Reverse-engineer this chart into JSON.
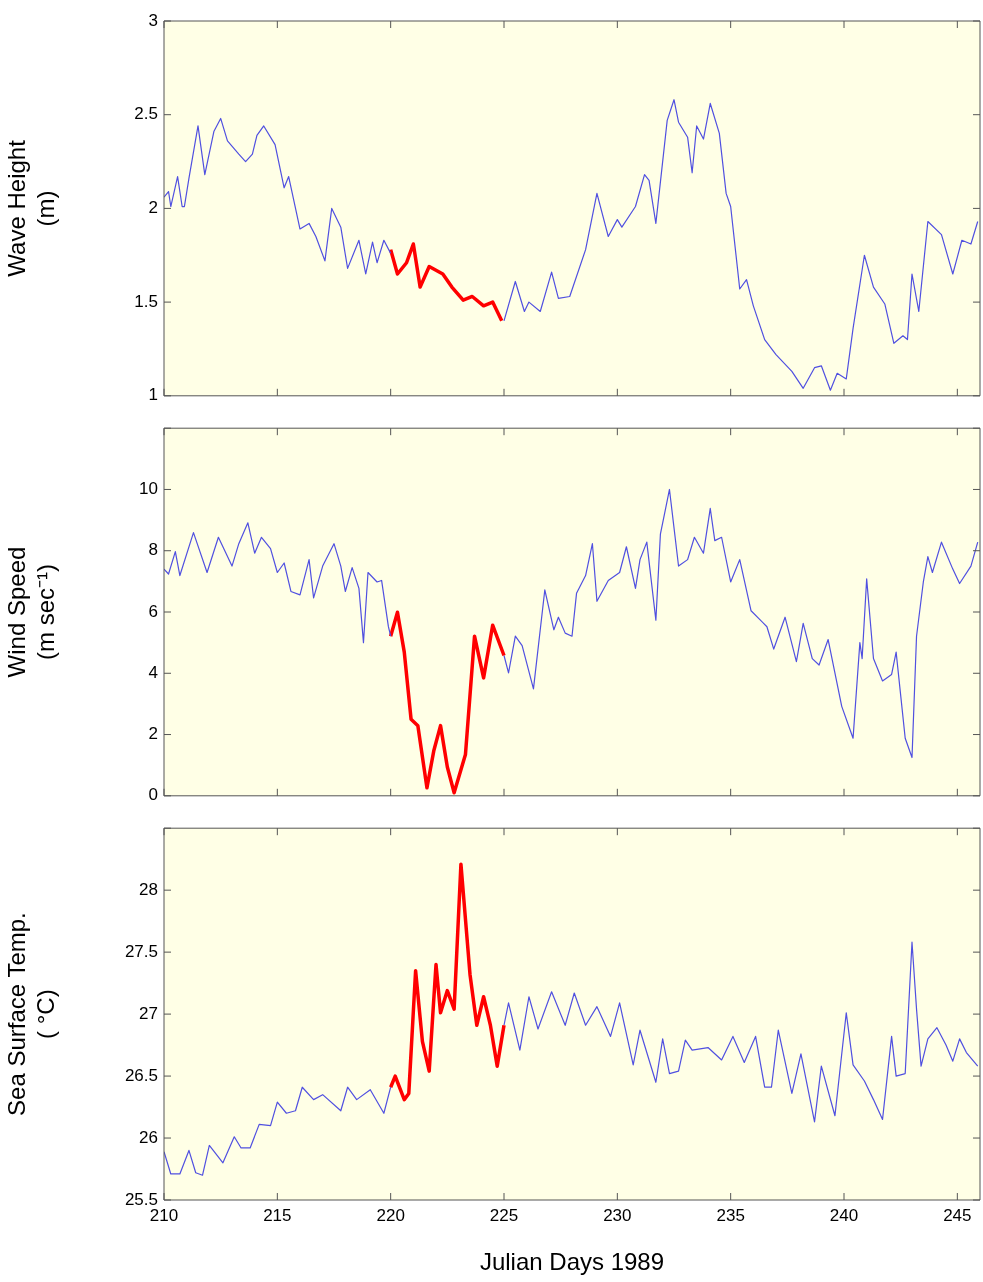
{
  "chart_data": [
    {
      "type": "line",
      "ylabel": "Wave Height\n(m)",
      "xlim": [
        210,
        246
      ],
      "xticks": [
        210,
        215,
        220,
        225,
        230,
        235,
        240,
        245
      ],
      "ylim": [
        1,
        3
      ],
      "yticks": [
        1,
        1.5,
        2,
        2.5,
        3
      ],
      "tick_labels": "y",
      "grid": false,
      "legend": false,
      "series": [
        {
          "color": "#5050e0",
          "x": [
            210.0,
            210.2,
            210.3,
            210.6,
            210.8,
            210.9,
            211.1,
            211.5,
            211.8,
            212.2,
            212.5,
            212.8,
            213.3,
            213.6,
            213.9,
            214.1,
            214.4,
            214.9,
            215.3,
            215.5,
            216.0,
            216.4,
            216.7,
            217.1,
            217.4,
            217.8,
            218.1,
            218.6,
            218.9,
            219.2,
            219.4,
            219.7,
            220.0
          ],
          "values": [
            2.06,
            2.09,
            2.01,
            2.17,
            2.01,
            2.01,
            2.16,
            2.44,
            2.18,
            2.41,
            2.48,
            2.36,
            2.29,
            2.25,
            2.29,
            2.39,
            2.44,
            2.34,
            2.11,
            2.17,
            1.89,
            1.92,
            1.85,
            1.72,
            2.0,
            1.9,
            1.68,
            1.83,
            1.65,
            1.82,
            1.71,
            1.83,
            1.76
          ]
        },
        {
          "color": "#ff0000",
          "x": [
            220.0,
            220.3,
            220.7,
            221.0,
            221.3,
            221.7,
            222.3,
            222.7,
            223.2,
            223.6,
            224.1,
            224.5,
            224.9
          ],
          "values": [
            1.78,
            1.65,
            1.71,
            1.81,
            1.58,
            1.69,
            1.65,
            1.58,
            1.51,
            1.53,
            1.48,
            1.5,
            1.4
          ]
        },
        {
          "color": "#5050e0",
          "x": [
            225.0,
            225.5,
            225.9,
            226.1,
            226.6,
            227.1,
            227.4,
            227.9,
            228.6,
            229.1,
            229.6,
            230.0,
            230.2,
            230.8,
            231.2,
            231.4,
            231.7,
            232.2,
            232.5,
            232.7,
            233.1,
            233.3,
            233.5,
            233.8,
            234.1,
            234.5,
            234.8,
            235.0,
            235.4,
            235.7,
            236.0,
            236.5,
            237.0,
            237.7,
            238.2,
            238.7,
            239.0,
            239.4,
            239.7,
            240.1,
            240.4,
            240.9,
            241.3,
            241.8,
            242.2,
            242.6,
            242.8,
            243.0,
            243.3,
            243.7,
            244.3,
            244.8,
            245.2,
            245.6,
            245.9
          ],
          "values": [
            1.4,
            1.61,
            1.45,
            1.5,
            1.45,
            1.66,
            1.52,
            1.53,
            1.78,
            2.08,
            1.85,
            1.94,
            1.9,
            2.01,
            2.18,
            2.15,
            1.92,
            2.47,
            2.58,
            2.46,
            2.38,
            2.19,
            2.44,
            2.37,
            2.56,
            2.4,
            2.08,
            2.01,
            1.57,
            1.62,
            1.48,
            1.3,
            1.22,
            1.13,
            1.04,
            1.15,
            1.16,
            1.03,
            1.12,
            1.09,
            1.36,
            1.75,
            1.58,
            1.49,
            1.28,
            1.32,
            1.3,
            1.65,
            1.45,
            1.93,
            1.86,
            1.65,
            1.83,
            1.81,
            1.93
          ]
        }
      ]
    },
    {
      "type": "line",
      "ylabel": "Wind Speed\n(m sec⁻¹)",
      "xlim": [
        210,
        246
      ],
      "xticks": [
        210,
        215,
        220,
        225,
        230,
        235,
        240,
        245
      ],
      "ylim": [
        0,
        12
      ],
      "yticks": [
        0,
        2,
        4,
        6,
        8,
        10,
        {
          "value": 12,
          "label": null
        }
      ],
      "tick_labels": "y",
      "grid": false,
      "legend": false,
      "series": [
        {
          "color": "#5050e0",
          "x": [
            210.0,
            210.2,
            210.5,
            210.7,
            211.3,
            211.9,
            212.4,
            213.0,
            213.3,
            213.7,
            214.0,
            214.3,
            214.7,
            215.0,
            215.3,
            215.6,
            216.0,
            216.4,
            216.6,
            217.0,
            217.5,
            217.8,
            218.0,
            218.3,
            218.6,
            218.8,
            219.0,
            219.4,
            219.6,
            219.9,
            220.0
          ],
          "values": [
            7.4,
            7.24,
            7.97,
            7.19,
            8.59,
            7.29,
            8.44,
            7.5,
            8.23,
            8.91,
            7.92,
            8.44,
            8.07,
            7.29,
            7.6,
            6.67,
            6.56,
            7.71,
            6.46,
            7.5,
            8.23,
            7.5,
            6.67,
            7.45,
            6.77,
            5.0,
            7.29,
            6.98,
            7.03,
            5.52,
            5.21
          ]
        },
        {
          "color": "#ff0000",
          "x": [
            220.0,
            220.3,
            220.6,
            220.9,
            221.2,
            221.6,
            221.9,
            222.2,
            222.5,
            222.8,
            223.3,
            223.7,
            224.1,
            224.5,
            225.0
          ],
          "values": [
            5.21,
            5.99,
            4.69,
            2.5,
            2.29,
            0.26,
            1.46,
            2.29,
            0.94,
            0.1,
            1.35,
            5.21,
            3.85,
            5.57,
            4.58
          ]
        },
        {
          "color": "#5050e0",
          "x": [
            225.0,
            225.2,
            225.5,
            225.8,
            226.3,
            226.8,
            227.2,
            227.4,
            227.7,
            228.0,
            228.2,
            228.6,
            228.9,
            229.1,
            229.6,
            230.1,
            230.4,
            230.8,
            231.0,
            231.3,
            231.7,
            231.9,
            232.3,
            232.7,
            233.1,
            233.4,
            233.8,
            234.1,
            234.3,
            234.6,
            235.0,
            235.4,
            235.9,
            236.6,
            236.9,
            237.4,
            237.9,
            238.2,
            238.6,
            238.9,
            239.3,
            239.9,
            240.4,
            240.7,
            240.8,
            241.0,
            241.3,
            241.7,
            242.1,
            242.3,
            242.7,
            243.0,
            243.2,
            243.5,
            243.7,
            243.9,
            244.3,
            244.8,
            245.1,
            245.6,
            245.9
          ],
          "values": [
            4.58,
            4.01,
            5.21,
            4.9,
            3.49,
            6.72,
            5.42,
            5.83,
            5.31,
            5.21,
            6.61,
            7.19,
            8.23,
            6.35,
            7.03,
            7.29,
            8.13,
            6.77,
            7.71,
            8.28,
            5.73,
            8.54,
            10.0,
            7.5,
            7.71,
            8.44,
            7.92,
            9.38,
            8.33,
            8.44,
            6.98,
            7.71,
            6.04,
            5.52,
            4.79,
            5.83,
            4.38,
            5.63,
            4.48,
            4.27,
            5.1,
            2.92,
            1.88,
            5.0,
            4.48,
            7.08,
            4.48,
            3.75,
            3.96,
            4.69,
            1.88,
            1.25,
            5.21,
            6.98,
            7.81,
            7.29,
            8.28,
            7.4,
            6.93,
            7.5,
            8.28
          ]
        }
      ]
    },
    {
      "type": "line",
      "ylabel": "Sea Surface Temp.\n( °C)",
      "xlabel": "Julian Days 1989",
      "xlim": [
        210,
        246
      ],
      "xticks": [
        210,
        215,
        220,
        225,
        230,
        235,
        240,
        245
      ],
      "ylim": [
        25.5,
        28.5
      ],
      "yticks": [
        25.5,
        26,
        26.5,
        27,
        27.5,
        28,
        {
          "value": 28.5,
          "label": null
        }
      ],
      "grid": false,
      "legend": false,
      "series": [
        {
          "color": "#5050e0",
          "x": [
            210.0,
            210.3,
            210.7,
            211.1,
            211.4,
            211.7,
            212.0,
            212.6,
            213.1,
            213.4,
            213.8,
            214.2,
            214.7,
            215.0,
            215.4,
            215.8,
            216.1,
            216.6,
            217.0,
            217.8,
            218.1,
            218.5,
            219.1,
            219.7,
            220.0
          ],
          "values": [
            25.89,
            25.71,
            25.71,
            25.9,
            25.72,
            25.7,
            25.94,
            25.8,
            26.01,
            25.92,
            25.92,
            26.11,
            26.1,
            26.29,
            26.2,
            26.22,
            26.41,
            26.31,
            26.35,
            26.22,
            26.41,
            26.31,
            26.39,
            26.2,
            26.41
          ]
        },
        {
          "color": "#ff0000",
          "x": [
            220.0,
            220.2,
            220.6,
            220.8,
            221.1,
            221.4,
            221.7,
            222.0,
            222.2,
            222.5,
            222.8,
            223.1,
            223.5,
            223.8,
            224.1,
            224.4,
            224.7,
            225.0
          ],
          "values": [
            26.41,
            26.5,
            26.31,
            26.36,
            27.35,
            26.78,
            26.54,
            27.4,
            27.01,
            27.19,
            27.04,
            28.21,
            27.32,
            26.91,
            27.14,
            26.91,
            26.58,
            26.91
          ]
        },
        {
          "color": "#5050e0",
          "x": [
            225.0,
            225.2,
            225.7,
            226.1,
            226.5,
            227.1,
            227.7,
            228.1,
            228.6,
            229.1,
            229.7,
            230.1,
            230.7,
            231.0,
            231.7,
            232.0,
            232.3,
            232.7,
            233.0,
            233.3,
            234.0,
            234.6,
            235.1,
            235.6,
            236.1,
            236.5,
            236.8,
            237.1,
            237.7,
            238.1,
            238.7,
            239.0,
            239.6,
            240.1,
            240.4,
            240.9,
            241.3,
            241.7,
            242.1,
            242.3,
            242.7,
            243.0,
            243.2,
            243.4,
            243.7,
            244.1,
            244.5,
            244.8,
            245.1,
            245.4,
            245.9
          ],
          "values": [
            26.91,
            27.09,
            26.71,
            27.14,
            26.88,
            27.18,
            26.91,
            27.17,
            26.91,
            27.06,
            26.82,
            27.09,
            26.59,
            26.87,
            26.45,
            26.8,
            26.52,
            26.54,
            26.79,
            26.71,
            26.73,
            26.63,
            26.82,
            26.61,
            26.82,
            26.41,
            26.41,
            26.87,
            26.36,
            26.68,
            26.13,
            26.58,
            26.18,
            27.01,
            26.59,
            26.46,
            26.31,
            26.15,
            26.82,
            26.5,
            26.52,
            27.58,
            27.04,
            26.58,
            26.8,
            26.89,
            26.75,
            26.62,
            26.8,
            26.69,
            26.58
          ]
        }
      ]
    }
  ]
}
